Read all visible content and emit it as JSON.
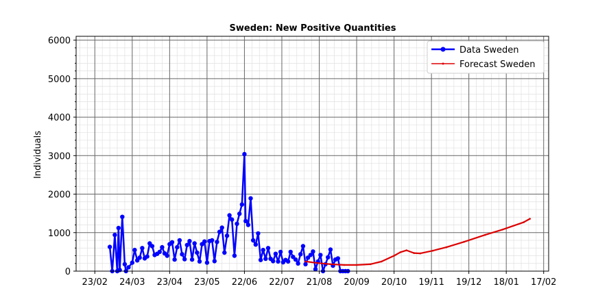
{
  "chart_data": {
    "type": "line",
    "title": "Sweden: New Positive Quantities",
    "xlabel": "",
    "ylabel": "Individuals",
    "x_tick_labels": [
      "23/02",
      "24/03",
      "23/04",
      "23/05",
      "22/06",
      "22/07",
      "21/08",
      "20/09",
      "20/10",
      "19/11",
      "19/12",
      "18/01",
      "17/02"
    ],
    "xlim": [
      "2020-02-08",
      "2021-02-21"
    ],
    "ylim": [
      0,
      6100
    ],
    "y_ticks": [
      0,
      1000,
      2000,
      3000,
      4000,
      5000,
      6000
    ],
    "grid": true,
    "legend_position": "top-right",
    "series": [
      {
        "name": "Data Sweden",
        "color": "#0000ff",
        "marker": "circle",
        "x": [
          "2020-03-06",
          "2020-03-08",
          "2020-03-10",
          "2020-03-12",
          "2020-03-13",
          "2020-03-14",
          "2020-03-16",
          "2020-03-18",
          "2020-03-19",
          "2020-03-21",
          "2020-03-24",
          "2020-03-26",
          "2020-03-28",
          "2020-03-30",
          "2020-04-01",
          "2020-04-03",
          "2020-04-05",
          "2020-04-07",
          "2020-04-09",
          "2020-04-11",
          "2020-04-13",
          "2020-04-15",
          "2020-04-17",
          "2020-04-19",
          "2020-04-21",
          "2020-04-23",
          "2020-04-25",
          "2020-04-27",
          "2020-04-29",
          "2020-05-01",
          "2020-05-03",
          "2020-05-05",
          "2020-05-07",
          "2020-05-09",
          "2020-05-11",
          "2020-05-13",
          "2020-05-15",
          "2020-05-17",
          "2020-05-19",
          "2020-05-21",
          "2020-05-23",
          "2020-05-25",
          "2020-05-27",
          "2020-05-29",
          "2020-05-31",
          "2020-06-02",
          "2020-06-04",
          "2020-06-06",
          "2020-06-08",
          "2020-06-10",
          "2020-06-12",
          "2020-06-14",
          "2020-06-16",
          "2020-06-18",
          "2020-06-20",
          "2020-06-22",
          "2020-06-23",
          "2020-06-25",
          "2020-06-27",
          "2020-06-29",
          "2020-07-01",
          "2020-07-03",
          "2020-07-05",
          "2020-07-07",
          "2020-07-09",
          "2020-07-11",
          "2020-07-13",
          "2020-07-15",
          "2020-07-17",
          "2020-07-19",
          "2020-07-21",
          "2020-07-23",
          "2020-07-25",
          "2020-07-27",
          "2020-07-29",
          "2020-07-31",
          "2020-08-02",
          "2020-08-04",
          "2020-08-06",
          "2020-08-08",
          "2020-08-10",
          "2020-08-12",
          "2020-08-14",
          "2020-08-16",
          "2020-08-18",
          "2020-08-20",
          "2020-08-22",
          "2020-08-24",
          "2020-08-26",
          "2020-08-28",
          "2020-08-30",
          "2020-09-01",
          "2020-09-03",
          "2020-09-05",
          "2020-09-07",
          "2020-09-09",
          "2020-09-11",
          "2020-09-13"
        ],
        "y": [
          630,
          0,
          940,
          0,
          1120,
          30,
          1410,
          180,
          0,
          100,
          220,
          550,
          280,
          350,
          600,
          330,
          380,
          720,
          650,
          420,
          450,
          500,
          620,
          460,
          400,
          700,
          750,
          300,
          620,
          800,
          440,
          310,
          680,
          780,
          300,
          720,
          480,
          250,
          700,
          770,
          220,
          780,
          800,
          260,
          760,
          1020,
          1130,
          480,
          920,
          1450,
          1340,
          400,
          1230,
          1490,
          1730,
          3040,
          1300,
          1200,
          1890,
          800,
          690,
          980,
          290,
          550,
          320,
          600,
          320,
          260,
          450,
          250,
          500,
          230,
          290,
          250,
          500,
          370,
          300,
          200,
          440,
          650,
          180,
          350,
          420,
          510,
          50,
          250,
          420,
          0,
          180,
          360,
          560,
          140,
          300,
          330,
          0,
          0,
          0,
          0
        ]
      },
      {
        "name": "Forecast Sweden",
        "color": "#dd0000",
        "marker": "point",
        "x": [
          "2020-08-10",
          "2020-08-20",
          "2020-08-30",
          "2020-09-10",
          "2020-09-20",
          "2020-10-01",
          "2020-10-10",
          "2020-10-20",
          "2020-10-25",
          "2020-10-30",
          "2020-11-05",
          "2020-11-10",
          "2020-11-20",
          "2020-12-01",
          "2020-12-15",
          "2021-01-01",
          "2021-01-15",
          "2021-02-01",
          "2021-02-06"
        ],
        "y": [
          250,
          210,
          180,
          160,
          160,
          180,
          250,
          400,
          490,
          540,
          470,
          460,
          530,
          620,
          760,
          940,
          1080,
          1270,
          1360
        ]
      }
    ]
  }
}
